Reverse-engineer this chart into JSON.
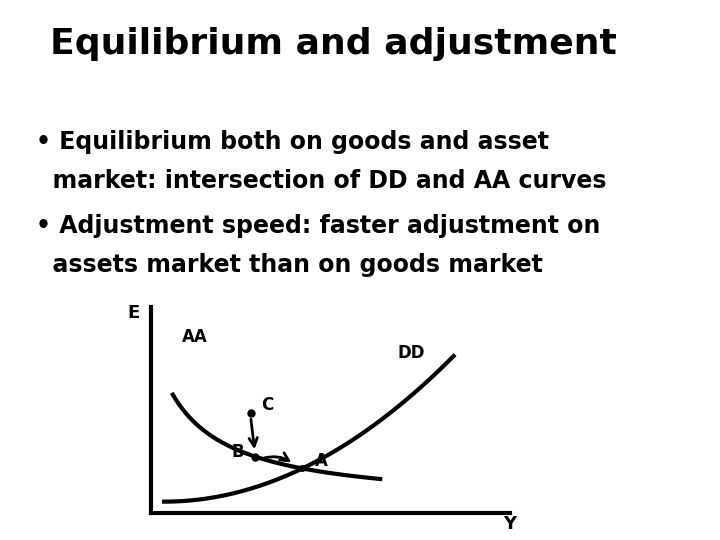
{
  "title": "Equilibrium and adjustment",
  "bullet1_line1": "• Equilibrium both on goods and asset",
  "bullet1_line2": "  market: intersection of DD and AA curves",
  "bullet2_line1": "• Adjustment speed: faster adjustment on",
  "bullet2_line2": "  assets market than on goods market",
  "background_color": "#ffffff",
  "text_color": "#000000",
  "axis_label_E": "E",
  "axis_label_Y": "Y",
  "label_AA": "AA",
  "label_DD": "DD",
  "label_A": "A",
  "label_B": "B",
  "label_C": "C",
  "title_fontsize": 26,
  "bullet_fontsize": 17,
  "diagram_lw": 2.5
}
